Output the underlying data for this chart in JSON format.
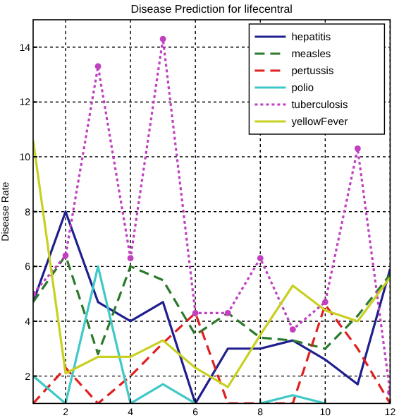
{
  "chart_data": {
    "type": "line",
    "title": "Disease Prediction for lifecentral",
    "ylabel": "Disease Rate",
    "x": [
      1,
      2,
      3,
      4,
      5,
      6,
      7,
      8,
      9,
      10,
      11,
      12
    ],
    "series": [
      {
        "name": "hepatitis",
        "color": "#1f1f8f",
        "line_style": "solid",
        "values": [
          4.7,
          8.0,
          4.7,
          4.0,
          4.7,
          1.0,
          3.0,
          3.0,
          3.3,
          2.6,
          1.7,
          5.9
        ]
      },
      {
        "name": "measles",
        "color": "#2a7a2a",
        "line_style": "dashed",
        "values": [
          4.7,
          6.4,
          2.8,
          6.0,
          5.5,
          3.5,
          4.3,
          3.4,
          3.3,
          3.0,
          4.2,
          5.7
        ]
      },
      {
        "name": "pertussis",
        "color": "#e02020",
        "line_style": "dashed",
        "values": [
          1.0,
          2.3,
          1.0,
          2.0,
          3.2,
          4.3,
          1.0,
          1.0,
          1.0,
          4.6,
          3.0,
          1.0
        ]
      },
      {
        "name": "polio",
        "color": "#40c8c8",
        "line_style": "solid",
        "values": [
          2.0,
          1.0,
          6.0,
          1.0,
          1.7,
          1.0,
          null,
          1.0,
          1.3,
          1.0,
          null,
          null
        ]
      },
      {
        "name": "tuberculosis",
        "color": "#c040c0",
        "line_style": "dotted",
        "marker": "circle",
        "values": [
          5.0,
          6.4,
          13.3,
          6.3,
          14.3,
          4.3,
          4.3,
          6.3,
          3.7,
          4.7,
          10.3,
          1.4
        ]
      },
      {
        "name": "yellowFever",
        "color": "#c8d020",
        "line_style": "solid",
        "values": [
          10.6,
          2.1,
          2.7,
          2.7,
          3.3,
          2.3,
          1.6,
          3.5,
          5.3,
          4.4,
          4.0,
          5.6
        ]
      }
    ],
    "xlim": [
      1,
      12
    ],
    "ylim": [
      1,
      15
    ],
    "xticks": [
      2,
      4,
      6,
      8,
      10,
      12
    ],
    "yticks": [
      2,
      4,
      6,
      8,
      10,
      12,
      14
    ],
    "grid": true,
    "legend": "top right"
  }
}
